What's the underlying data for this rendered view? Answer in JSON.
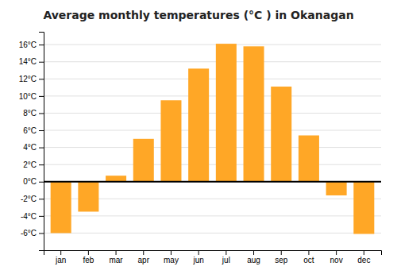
{
  "chart_data": {
    "type": "bar",
    "title": "Average monthly temperatures (°C ) in Okanagan",
    "categories": [
      "jan",
      "feb",
      "mar",
      "apr",
      "may",
      "jun",
      "jul",
      "aug",
      "sep",
      "oct",
      "nov",
      "dec"
    ],
    "values": [
      -6.0,
      -3.5,
      0.7,
      5.0,
      9.5,
      13.2,
      16.1,
      15.8,
      11.1,
      5.4,
      -1.6,
      -6.1
    ],
    "color": "#FFA726",
    "ylim": [
      -8,
      17.5
    ],
    "yticks": [
      {
        "value": -6,
        "label": "-6°C"
      },
      {
        "value": -4,
        "label": "-4°C"
      },
      {
        "value": -2,
        "label": "-2°C"
      },
      {
        "value": 0,
        "label": "0°C"
      },
      {
        "value": 2,
        "label": "2°C"
      },
      {
        "value": 4,
        "label": "4°C"
      },
      {
        "value": 6,
        "label": "6°C"
      },
      {
        "value": 8,
        "label": "8°C"
      },
      {
        "value": 10,
        "label": "10°C"
      },
      {
        "value": 12,
        "label": "12°C"
      },
      {
        "value": 14,
        "label": "14°C"
      },
      {
        "value": 16,
        "label": "16°C"
      }
    ],
    "grid": true
  }
}
